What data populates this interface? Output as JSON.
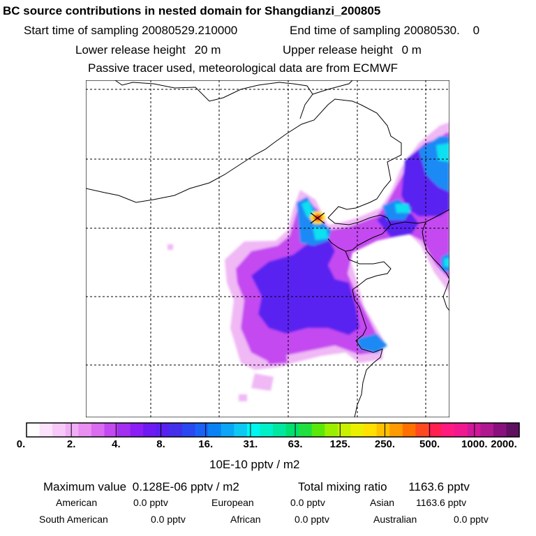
{
  "title": "BC  source contributions in nested domain for Shangdianzi_200805",
  "sampling": {
    "start_label": "Start time of sampling",
    "start_value": "20080529.210000",
    "end_label": "End time of sampling",
    "end_value": "20080530.",
    "end_tail": "0"
  },
  "release": {
    "lower_label": "Lower release height",
    "lower_value": "20 m",
    "upper_label": "Upper release height",
    "upper_value": "0 m"
  },
  "note": "Passive tracer used, meteorological data are from ECMWF",
  "colorbar": {
    "labels": [
      "0.",
      "2.",
      "4.",
      "8.",
      "16.",
      "31.",
      "63.",
      "125.",
      "250.",
      "500.",
      "1000.",
      "2000."
    ],
    "unit": "10E-10 pptv / m2",
    "colors": [
      "#ffffff",
      "#fbe3fb",
      "#f6c9f8",
      "#f0aef5",
      "#e88ff1",
      "#d96cf0",
      "#c24af0",
      "#a32ff0",
      "#8a1ef5",
      "#6e1af2",
      "#5a20f0",
      "#4330ea",
      "#2a48f0",
      "#1a62f5",
      "#0a82f5",
      "#0ba6f5",
      "#0dc8f2",
      "#00f5f0",
      "#00f0c8",
      "#00e8a0",
      "#00e070",
      "#20e040",
      "#5ae80a",
      "#9aef00",
      "#c8f000",
      "#eaf000",
      "#ffe000",
      "#ffc000",
      "#ff9a00",
      "#ff7000",
      "#ff4a20",
      "#ff2050",
      "#ff1a80",
      "#f0188f",
      "#d0189a",
      "#b01890",
      "#8a107e",
      "#601060"
    ]
  },
  "stats": {
    "max_label": "Maximum value",
    "max_value": "0.128E-06 pptv / m2",
    "total_label": "Total mixing ratio",
    "total_value": "1163.6 pptv"
  },
  "regions": [
    {
      "name": "American",
      "value": "0.0 pptv"
    },
    {
      "name": "European",
      "value": "0.0 pptv"
    },
    {
      "name": "Asian",
      "value": "1163.6 pptv"
    },
    {
      "name": "South American",
      "value": "0.0 pptv"
    },
    {
      "name": "African",
      "value": "0.0 pptv"
    },
    {
      "name": "Australian",
      "value": "0.0 pptv"
    }
  ],
  "colors": {
    "plume_outer": "#f0b8f5",
    "plume_mid": "#c44af0",
    "plume_core": "#5a22f0",
    "hot_blue": "#1a8af5",
    "cyan": "#10e0f0",
    "source_red": "#ff1a2a",
    "source_yellow": "#ffe000"
  }
}
